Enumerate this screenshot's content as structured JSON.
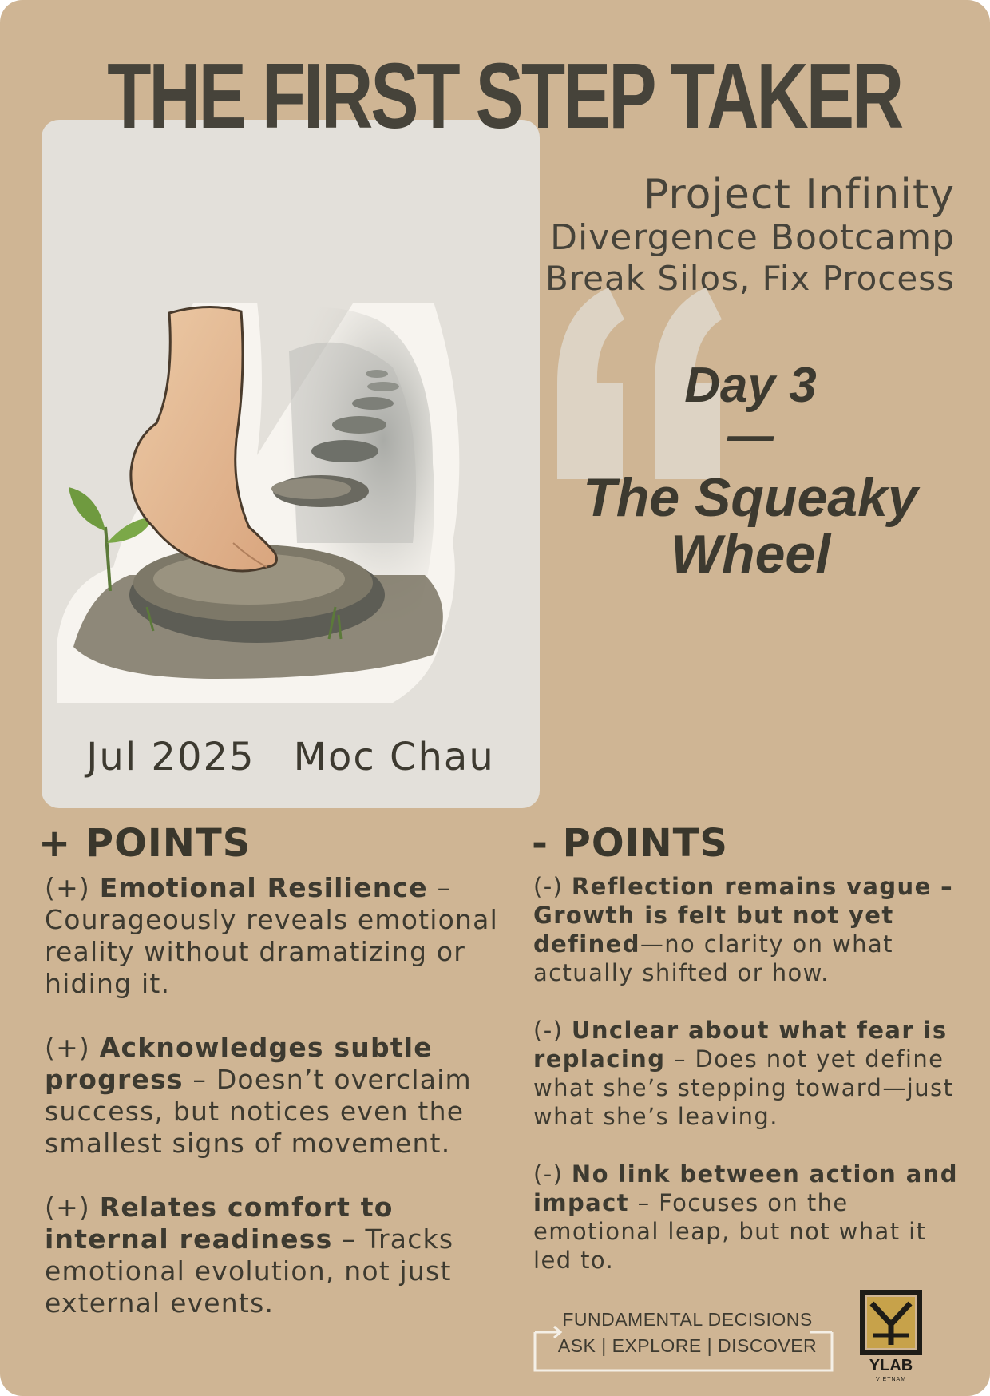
{
  "title": "THE FIRST STEP TAKER",
  "project": {
    "line1": "Project Infinity",
    "line2": "Divergence Bootcamp",
    "line3": "Break Silos, Fix Process"
  },
  "day": {
    "label": "Day 3",
    "dash": "—",
    "name": "The Squeaky Wheel"
  },
  "photo": {
    "date": "Jul 2025",
    "location": "Moc Chau"
  },
  "plus": {
    "heading": "+ POINTS",
    "items": [
      {
        "prefix": "(+) ",
        "bold": "Emotional Resilience",
        "text": " – Courageously reveals emotional reality without dramatizing or hiding it."
      },
      {
        "prefix": " (+) ",
        "bold": "Acknowledges subtle progress",
        "text": " – Doesn’t overclaim success, but notices even the smallest signs of movement."
      },
      {
        "prefix": " (+) ",
        "bold": "Relates comfort to internal readiness",
        "text": " – Tracks emotional evolution, not just external events."
      }
    ]
  },
  "minus": {
    "heading": "- POINTS",
    "items": [
      {
        "prefix": "(-) ",
        "bold": "Reflection remains vague – Growth is felt but not yet defined",
        "text": "—no clarity on what actually shifted or how."
      },
      {
        "prefix": " (-) ",
        "bold": "Unclear about what fear is replacing",
        "text": " – Does not yet define what she’s stepping toward—just what she’s leaving."
      },
      {
        "prefix": " (-) ",
        "bold": "No link between action and impact",
        "text": " – Focuses on the emotional leap, but not what it led to."
      }
    ]
  },
  "footer": {
    "line1": "FUNDAMENTAL DECISIONS",
    "line2": "ASK | EXPLORE | DISCOVER"
  },
  "logo": {
    "name": "YLAB",
    "sub": "VIETNAM"
  },
  "colors": {
    "background": "#cfb594",
    "panel": "#e3e0da",
    "text": "#3a372c",
    "quote": "#ddd3c4"
  }
}
